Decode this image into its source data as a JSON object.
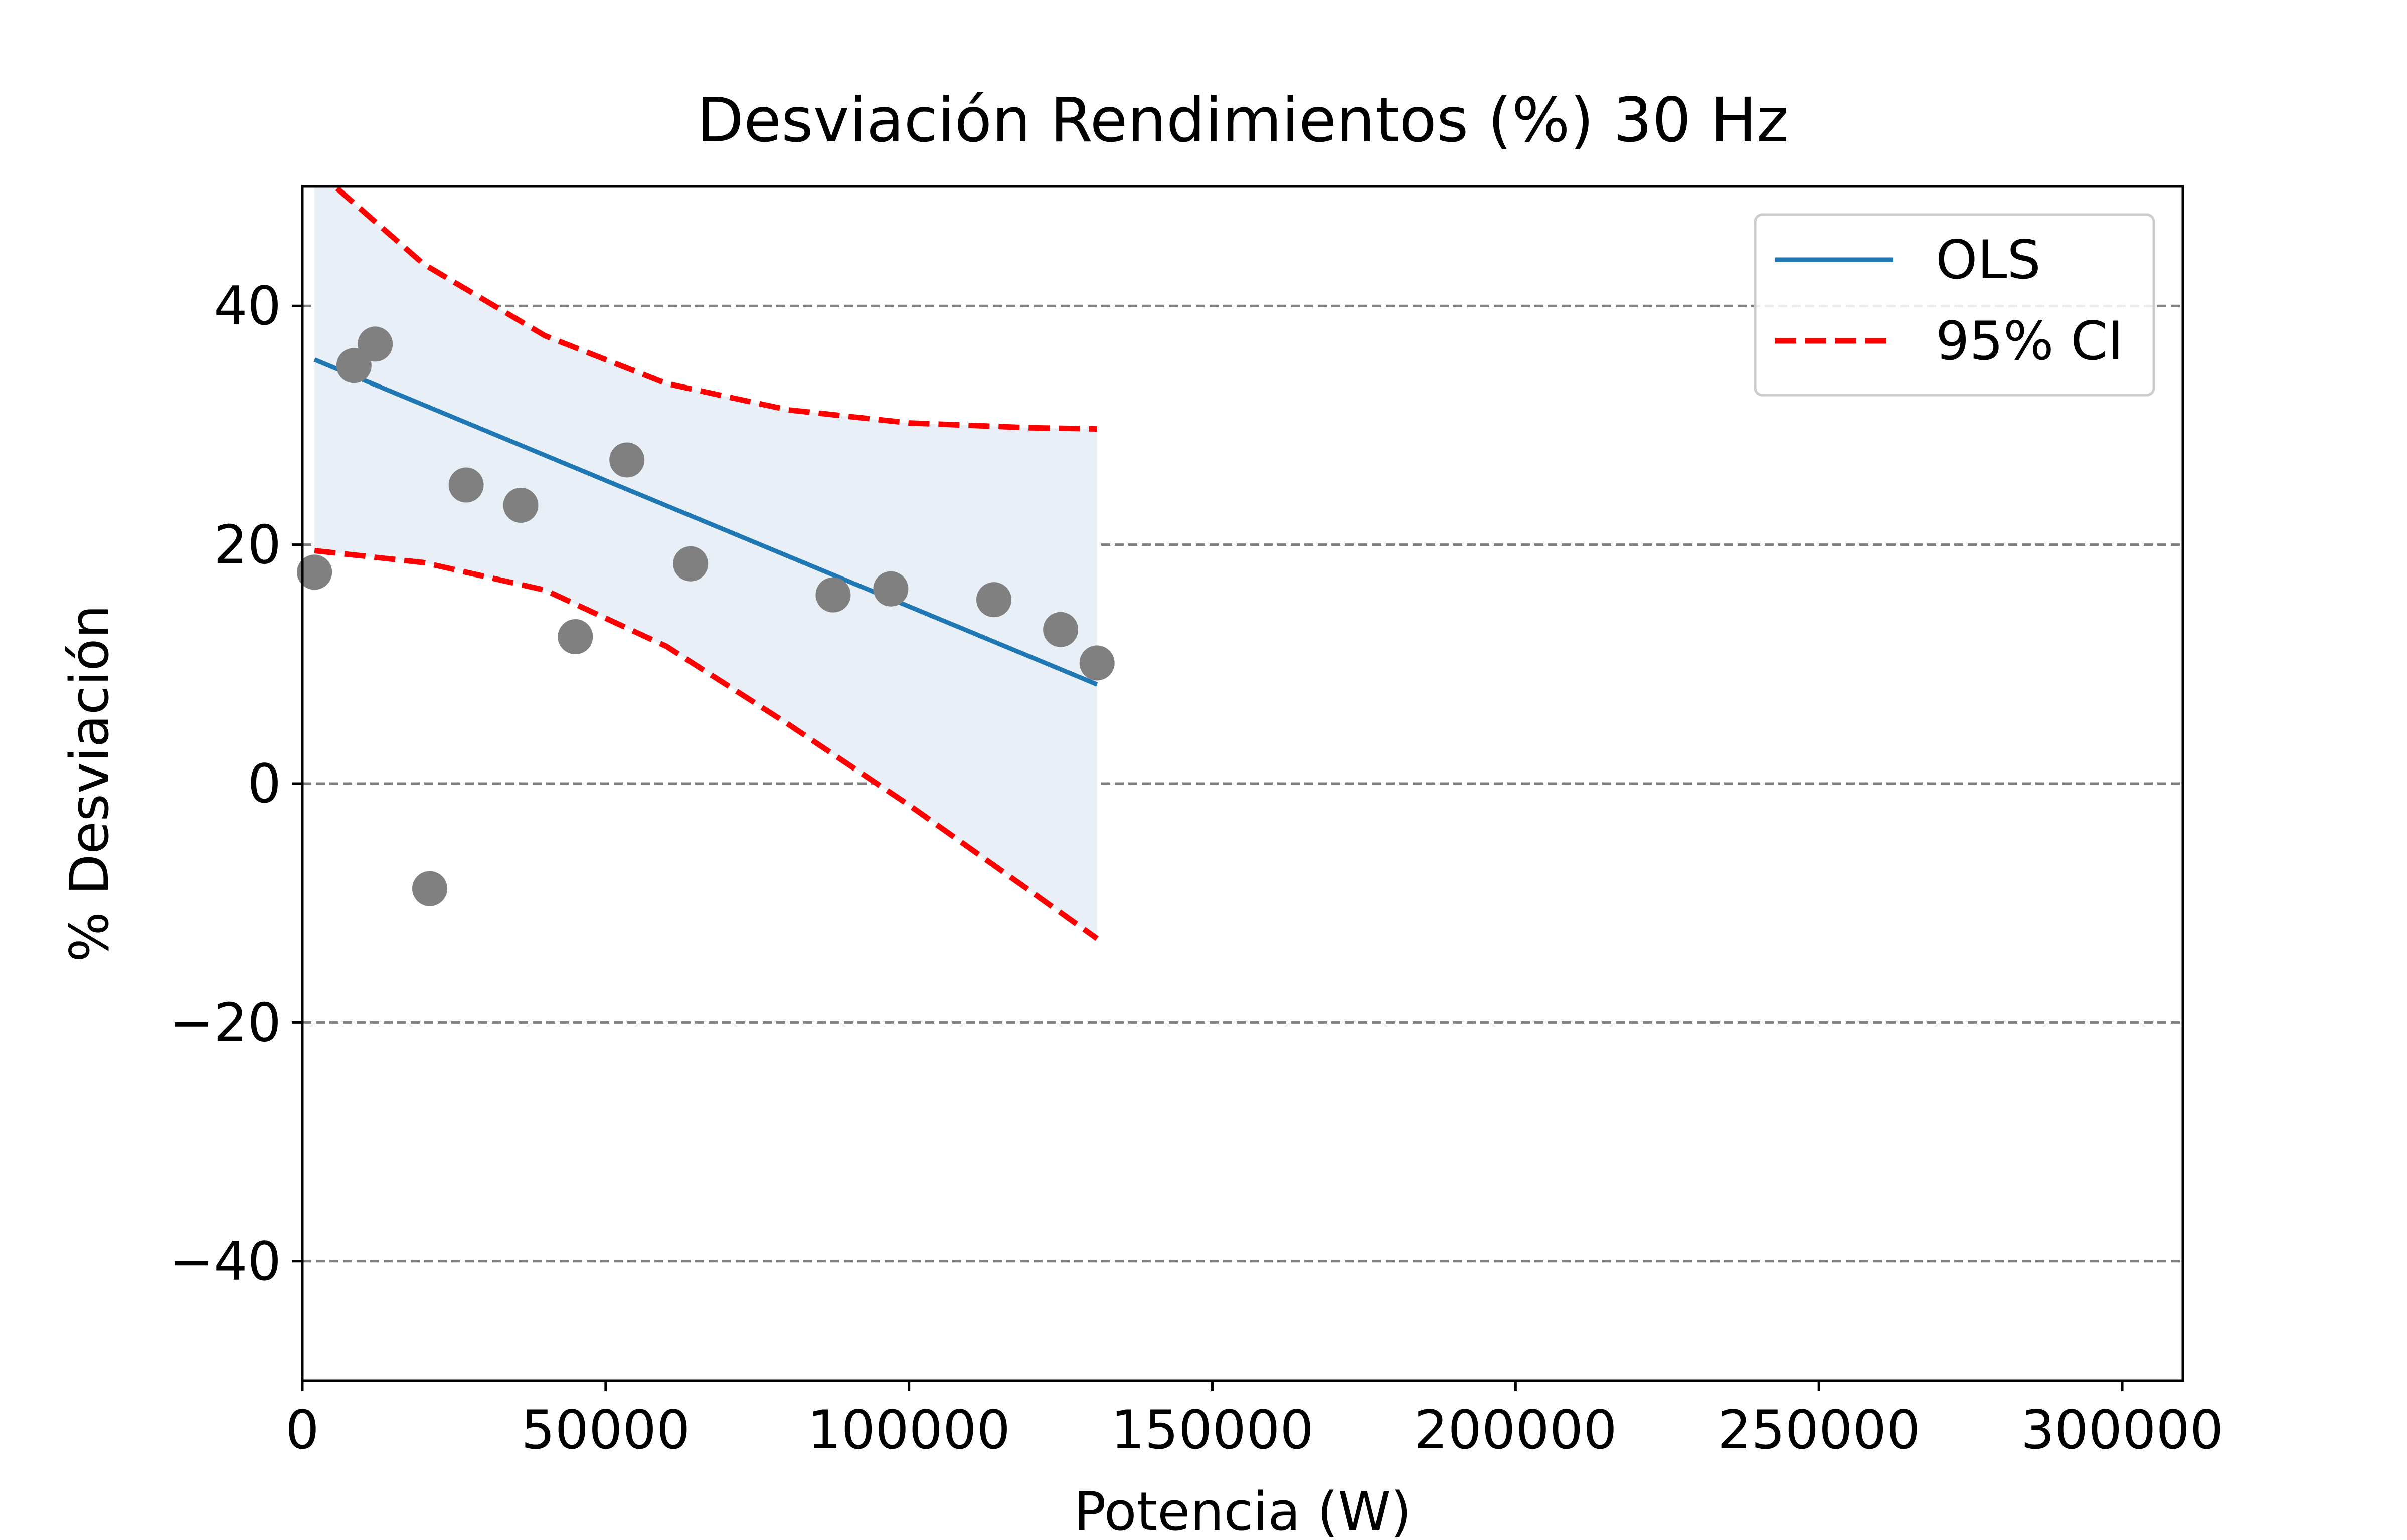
{
  "chart_data": {
    "type": "scatter",
    "title": "Desviación Rendimientos (%) 30 Hz",
    "xlabel": "Potencia (W)",
    "ylabel": "% Desviación",
    "xlim": [
      0,
      310000
    ],
    "ylim": [
      -50,
      50
    ],
    "xticks": [
      0,
      50000,
      100000,
      150000,
      200000,
      250000,
      300000
    ],
    "xtick_labels": [
      "0",
      "50000",
      "100000",
      "150000",
      "200000",
      "250000",
      "300000"
    ],
    "yticks": [
      -40,
      -20,
      0,
      20,
      40
    ],
    "ytick_labels": [
      "−40",
      "−20",
      "0",
      "20",
      "40"
    ],
    "grid": "horizontal dashed at y ticks",
    "legend": {
      "placement": "top-right",
      "entries": [
        {
          "label": "OLS",
          "color": "#1f77b4",
          "style": "solid"
        },
        {
          "label": "95% CI",
          "color": "#ff0000",
          "style": "dashed"
        }
      ]
    },
    "points": {
      "color": "#808080",
      "x": [
        2000,
        8500,
        12000,
        21000,
        27000,
        36000,
        45000,
        53500,
        64000,
        87500,
        97000,
        114000,
        125000,
        131000
      ],
      "y": [
        17.7,
        35.0,
        36.8,
        -8.8,
        25.0,
        23.3,
        12.3,
        27.1,
        18.4,
        15.8,
        16.3,
        15.4,
        12.9,
        10.1
      ]
    },
    "series": [
      {
        "name": "OLS",
        "color": "#1f77b4",
        "x": [
          2000,
          131000
        ],
        "y": [
          35.5,
          8.3
        ]
      },
      {
        "name": "95% CI",
        "color": "#ff0000",
        "x": [
          2000,
          20000,
          40000,
          60000,
          80000,
          100000,
          120000,
          131000
        ],
        "y_upper": [
          51.5,
          43.5,
          37.5,
          33.5,
          31.3,
          30.2,
          29.8,
          29.7
        ],
        "y_lower": [
          19.5,
          18.5,
          16.2,
          11.5,
          5.0,
          -1.8,
          -9.0,
          -13.0
        ]
      }
    ],
    "band_fill_color": "#e8eff7"
  }
}
